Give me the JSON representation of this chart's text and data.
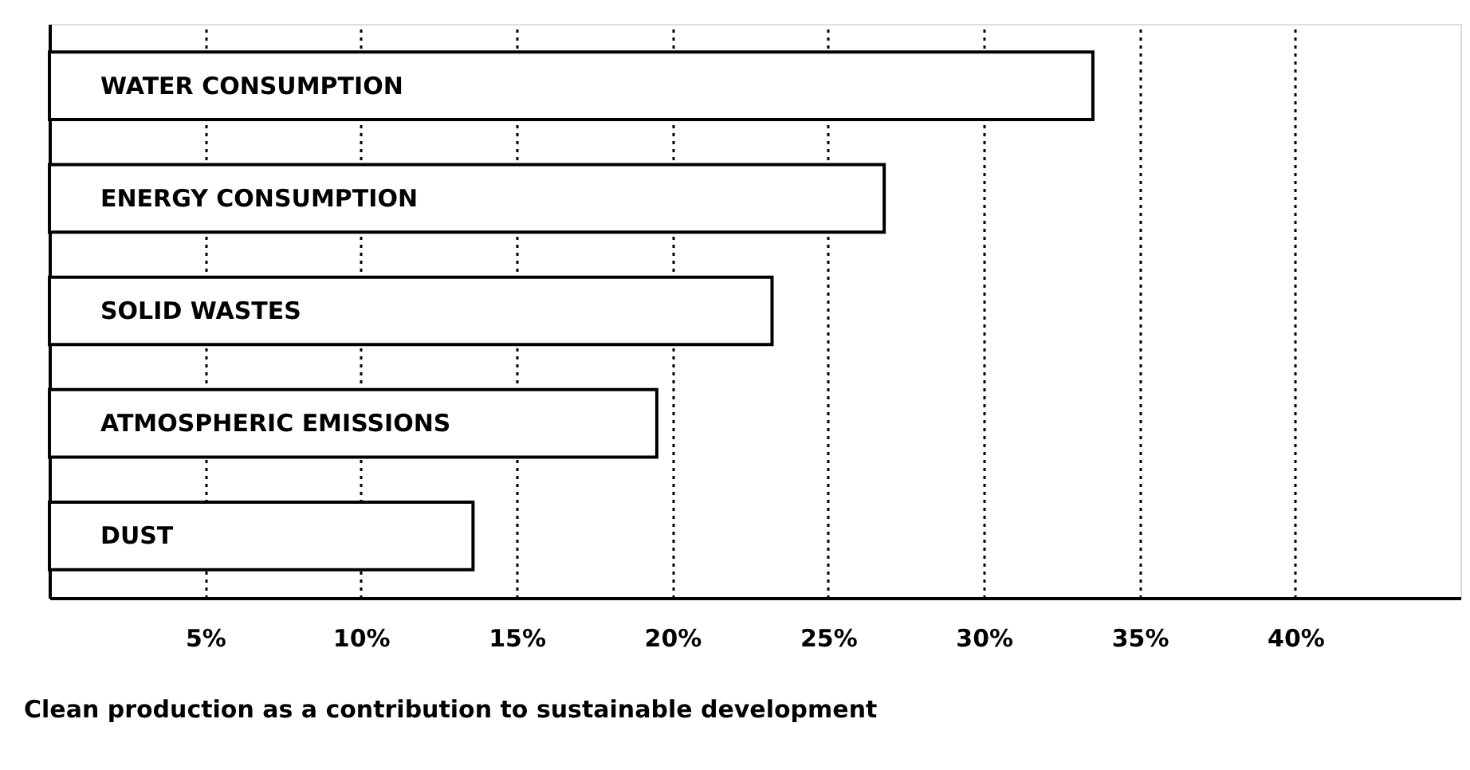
{
  "chart_data": {
    "type": "bar",
    "orientation": "horizontal",
    "categories": [
      "WATER CONSUMPTION",
      "ENERGY CONSUMPTION",
      "SOLID WASTES",
      "ATMOSPHERIC EMISSIONS",
      "DUST"
    ],
    "values": [
      33.5,
      26.8,
      23.2,
      19.5,
      13.6
    ],
    "color": "#ffffff",
    "xlim": [
      0,
      45.3
    ],
    "xticks": [
      {
        "value": 5,
        "label": "5%"
      },
      {
        "value": 10,
        "label": "10%"
      },
      {
        "value": 15,
        "label": "15%"
      },
      {
        "value": 20,
        "label": "20%"
      },
      {
        "value": 25,
        "label": "25%"
      },
      {
        "value": 30,
        "label": "30%"
      },
      {
        "value": 35,
        "label": "35%"
      },
      {
        "value": 40,
        "label": "40%"
      }
    ],
    "tick_labels": "x",
    "grid": "x",
    "line_style": "dotted",
    "annotations": [
      "Clean production as a contribution to sustainable development"
    ]
  }
}
